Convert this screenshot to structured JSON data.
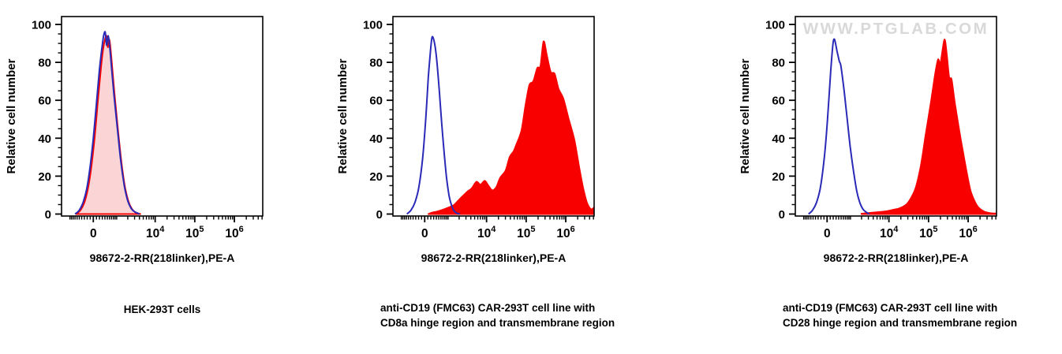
{
  "colors": {
    "blue": "#2a2ab8",
    "red": "#f80000",
    "pink": "#fbd5d5",
    "axis": "#000000",
    "text": "#000000",
    "watermark": "#d9d9d9"
  },
  "chart_data": [
    {
      "type": "area",
      "title": "",
      "xlabel": "98672-2-RR(218linker),PE-A",
      "ylabel": "Relative cell number",
      "caption": [
        "HEK-293T cells"
      ],
      "watermark": "",
      "x_scale": {
        "type": "biexponential-asinh",
        "sigma": 550,
        "min": -1700,
        "max": 5200000,
        "ticks": [
          {
            "v": 0,
            "label": "0",
            "sup": ""
          },
          {
            "v": 10000,
            "label": "10",
            "sup": "4"
          },
          {
            "v": 100000,
            "label": "10",
            "sup": "5"
          },
          {
            "v": 1000000,
            "label": "10",
            "sup": "6"
          }
        ]
      },
      "y_scale": {
        "min": 0,
        "max": 100,
        "major_step": 20,
        "minor_step": 5
      },
      "series": [
        {
          "name": "red-filled-histogram",
          "color": "red",
          "fill": "pink",
          "points": [
            [
              -650,
              0
            ],
            [
              -450,
              2
            ],
            [
              -300,
              6
            ],
            [
              -180,
              13
            ],
            [
              -70,
              24
            ],
            [
              40,
              40
            ],
            [
              150,
              60
            ],
            [
              240,
              75
            ],
            [
              330,
              87
            ],
            [
              400,
              92
            ],
            [
              460,
              94
            ],
            [
              520,
              88
            ],
            [
              590,
              92
            ],
            [
              660,
              86
            ],
            [
              760,
              74
            ],
            [
              900,
              60
            ],
            [
              1120,
              42
            ],
            [
              1380,
              26
            ],
            [
              1700,
              14
            ],
            [
              2100,
              6.5
            ],
            [
              2550,
              2.8
            ],
            [
              3100,
              1
            ],
            [
              4200,
              0
            ]
          ]
        },
        {
          "name": "blue-open-histogram",
          "color": "blue",
          "fill": "none",
          "points": [
            [
              -700,
              0
            ],
            [
              -500,
              2
            ],
            [
              -350,
              6
            ],
            [
              -220,
              13
            ],
            [
              -110,
              24
            ],
            [
              0,
              40
            ],
            [
              110,
              60
            ],
            [
              200,
              76
            ],
            [
              290,
              88
            ],
            [
              350,
              94
            ],
            [
              410,
              96
            ],
            [
              470,
              89
            ],
            [
              540,
              94
            ],
            [
              610,
              88
            ],
            [
              700,
              77
            ],
            [
              830,
              63
            ],
            [
              1050,
              45
            ],
            [
              1300,
              28
            ],
            [
              1620,
              15
            ],
            [
              2000,
              7
            ],
            [
              2450,
              3
            ],
            [
              3000,
              1.2
            ],
            [
              4000,
              0
            ]
          ]
        }
      ]
    },
    {
      "type": "area",
      "title": "",
      "xlabel": "98672-2-RR(218linker),PE-A",
      "ylabel": "Relative cell number",
      "caption": [
        "anti-CD19 (FMC63) CAR-293T cell line with",
        "CD8a hinge region and transmembrane region"
      ],
      "watermark": "",
      "x_scale": {
        "type": "biexponential-asinh",
        "sigma": 550,
        "min": -1700,
        "max": 5200000,
        "ticks": [
          {
            "v": 0,
            "label": "0",
            "sup": ""
          },
          {
            "v": 10000,
            "label": "10",
            "sup": "4"
          },
          {
            "v": 100000,
            "label": "10",
            "sup": "5"
          },
          {
            "v": 1000000,
            "label": "10",
            "sup": "6"
          }
        ]
      },
      "y_scale": {
        "min": 0,
        "max": 100,
        "major_step": 20,
        "minor_step": 5
      },
      "series": [
        {
          "name": "red-filled-histogram",
          "color": "red",
          "fill": "red",
          "points": [
            [
              120,
              0
            ],
            [
              250,
              0.8
            ],
            [
              400,
              1.2
            ],
            [
              680,
              2.2
            ],
            [
              1060,
              3.5
            ],
            [
              1500,
              5
            ],
            [
              2090,
              8
            ],
            [
              2650,
              10
            ],
            [
              3350,
              12
            ],
            [
              4200,
              13.5
            ],
            [
              5570,
              17
            ],
            [
              7000,
              15.5
            ],
            [
              9000,
              17.5
            ],
            [
              11100,
              15
            ],
            [
              13900,
              12.5
            ],
            [
              17500,
              14
            ],
            [
              22000,
              19
            ],
            [
              30400,
              23
            ],
            [
              38300,
              30
            ],
            [
              48100,
              33
            ],
            [
              55200,
              36
            ],
            [
              76200,
              44
            ],
            [
              95900,
              57
            ],
            [
              120600,
              68
            ],
            [
              151800,
              70
            ],
            [
              191000,
              77
            ],
            [
              229600,
              78
            ],
            [
              275500,
              91
            ],
            [
              331000,
              84
            ],
            [
              416000,
              75
            ],
            [
              522000,
              74
            ],
            [
              657000,
              66
            ],
            [
              865000,
              61
            ],
            [
              1190000,
              50
            ],
            [
              1650000,
              39
            ],
            [
              2170000,
              25
            ],
            [
              2730000,
              14
            ],
            [
              3430000,
              6
            ],
            [
              4300000,
              2.5
            ],
            [
              5200000,
              3.5
            ]
          ]
        },
        {
          "name": "blue-open-histogram",
          "color": "blue",
          "fill": "none",
          "points": [
            [
              -676,
              0
            ],
            [
              -489,
              2
            ],
            [
              -332,
              6
            ],
            [
              -192,
              14
            ],
            [
              -62,
              30
            ],
            [
              40,
              52
            ],
            [
              116,
              72
            ],
            [
              194,
              87
            ],
            [
              248,
              93.5
            ],
            [
              334,
              90
            ],
            [
              426,
              80
            ],
            [
              524,
              65
            ],
            [
              637,
              48
            ],
            [
              767,
              32
            ],
            [
              904,
              19
            ],
            [
              1059,
              10
            ],
            [
              1233,
              5
            ],
            [
              1430,
              2
            ],
            [
              1730,
              0.5
            ],
            [
              2090,
              0
            ]
          ]
        }
      ]
    },
    {
      "type": "area",
      "title": "",
      "xlabel": "98672-2-RR(218linker),PE-A",
      "ylabel": "Relative cell number",
      "caption": [
        "anti-CD19 (FMC63) CAR-293T cell line with",
        "CD28 hinge region and transmembrane region"
      ],
      "watermark": "WWW.PTGLAB.COM",
      "x_scale": {
        "type": "biexponential-asinh",
        "sigma": 550,
        "min": -1700,
        "max": 5200000,
        "ticks": [
          {
            "v": 0,
            "label": "0",
            "sup": ""
          },
          {
            "v": 10000,
            "label": "10",
            "sup": "4"
          },
          {
            "v": 100000,
            "label": "10",
            "sup": "5"
          },
          {
            "v": 1000000,
            "label": "10",
            "sup": "6"
          }
        ]
      },
      "y_scale": {
        "min": 0,
        "max": 100,
        "major_step": 20,
        "minor_step": 5
      },
      "series": [
        {
          "name": "red-filled-histogram",
          "color": "red",
          "fill": "red",
          "points": [
            [
              2000,
              0.2
            ],
            [
              2910,
              0.5
            ],
            [
              5320,
              1
            ],
            [
              8830,
              1.5
            ],
            [
              14600,
              2.5
            ],
            [
              18400,
              3
            ],
            [
              29100,
              5.5
            ],
            [
              46000,
              13
            ],
            [
              63400,
              25
            ],
            [
              83600,
              41
            ],
            [
              115000,
              59
            ],
            [
              145000,
              73
            ],
            [
              174000,
              81.5
            ],
            [
              200000,
              79.5
            ],
            [
              252000,
              92
            ],
            [
              289000,
              84
            ],
            [
              332000,
              72
            ],
            [
              381000,
              71
            ],
            [
              458000,
              59
            ],
            [
              575000,
              46
            ],
            [
              723000,
              34
            ],
            [
              910000,
              22.5
            ],
            [
              1140000,
              12.5
            ],
            [
              1440000,
              7
            ],
            [
              1810000,
              3.5
            ],
            [
              2490000,
              1.4
            ],
            [
              3600000,
              0.5
            ],
            [
              5200000,
              0.3
            ]
          ]
        },
        {
          "name": "blue-open-histogram",
          "color": "blue",
          "fill": "none",
          "points": [
            [
              -713,
              0
            ],
            [
              -522,
              2
            ],
            [
              -363,
              6
            ],
            [
              -219,
              14
            ],
            [
              -87,
              30
            ],
            [
              14,
              50
            ],
            [
              116,
              75
            ],
            [
              194,
              90
            ],
            [
              248,
              92
            ],
            [
              335,
              86
            ],
            [
              427,
              80.5
            ],
            [
              492,
              78
            ],
            [
              638,
              65
            ],
            [
              800,
              50
            ],
            [
              990,
              35
            ],
            [
              1233,
              22
            ],
            [
              1495,
              12
            ],
            [
              1810,
              6
            ],
            [
              2190,
              2.5
            ],
            [
              2645,
              1
            ],
            [
              3200,
              0
            ]
          ]
        }
      ]
    }
  ]
}
